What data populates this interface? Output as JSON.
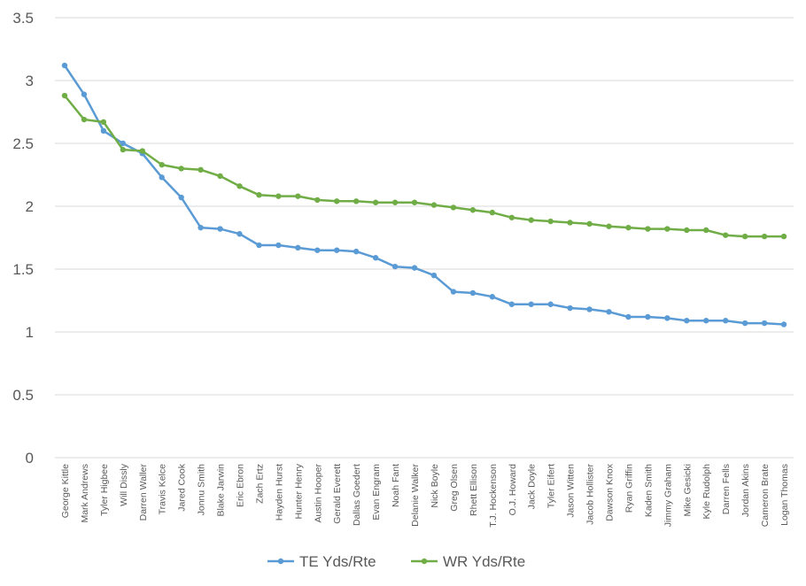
{
  "chart_data": {
    "type": "line",
    "categories": [
      "George Kittle",
      "Mark Andrews",
      "Tyler Higbee",
      "Will Dissly",
      "Darren Waller",
      "Travis Kelce",
      "Jared Cook",
      "Jonnu Smith",
      "Blake Jarwin",
      "Eric Ebron",
      "Zach Ertz",
      "Hayden Hurst",
      "Hunter Henry",
      "Austin Hooper",
      "Gerald Everett",
      "Dallas Goedert",
      "Evan Engram",
      "Noah Fant",
      "Delanie Walker",
      "Nick Boyle",
      "Greg Olsen",
      "Rhett Ellison",
      "T.J. Hockenson",
      "O.J. Howard",
      "Jack Doyle",
      "Tyler Eifert",
      "Jason Witten",
      "Jacob Hollister",
      "Dawson Knox",
      "Ryan Griffin",
      "Kaden Smith",
      "Jimmy Graham",
      "Mike Gesicki",
      "Kyle Rudolph",
      "Darren Fells",
      "Jordan Akins",
      "Cameron Brate",
      "Logan Thomas"
    ],
    "series": [
      {
        "name": "TE Yds/Rte",
        "color": "#5B9BD5",
        "values": [
          3.12,
          2.89,
          2.6,
          2.5,
          2.42,
          2.23,
          2.07,
          1.83,
          1.82,
          1.78,
          1.69,
          1.69,
          1.67,
          1.65,
          1.65,
          1.64,
          1.59,
          1.52,
          1.51,
          1.45,
          1.32,
          1.31,
          1.28,
          1.22,
          1.22,
          1.22,
          1.19,
          1.18,
          1.16,
          1.12,
          1.12,
          1.11,
          1.09,
          1.09,
          1.09,
          1.07,
          1.07,
          1.06
        ]
      },
      {
        "name": "WR Yds/Rte",
        "color": "#70AD47",
        "values": [
          2.88,
          2.69,
          2.67,
          2.45,
          2.44,
          2.33,
          2.3,
          2.29,
          2.24,
          2.16,
          2.09,
          2.08,
          2.08,
          2.05,
          2.04,
          2.04,
          2.03,
          2.03,
          2.03,
          2.01,
          1.99,
          1.97,
          1.95,
          1.91,
          1.89,
          1.88,
          1.87,
          1.86,
          1.84,
          1.83,
          1.82,
          1.82,
          1.81,
          1.81,
          1.77,
          1.76,
          1.76,
          1.76
        ]
      }
    ],
    "yticks": [
      "0",
      "0.5",
      "1",
      "1.5",
      "2",
      "2.5",
      "3",
      "3.5"
    ],
    "ylim": [
      0,
      3.5
    ],
    "grid": true,
    "legend": "bottom"
  }
}
